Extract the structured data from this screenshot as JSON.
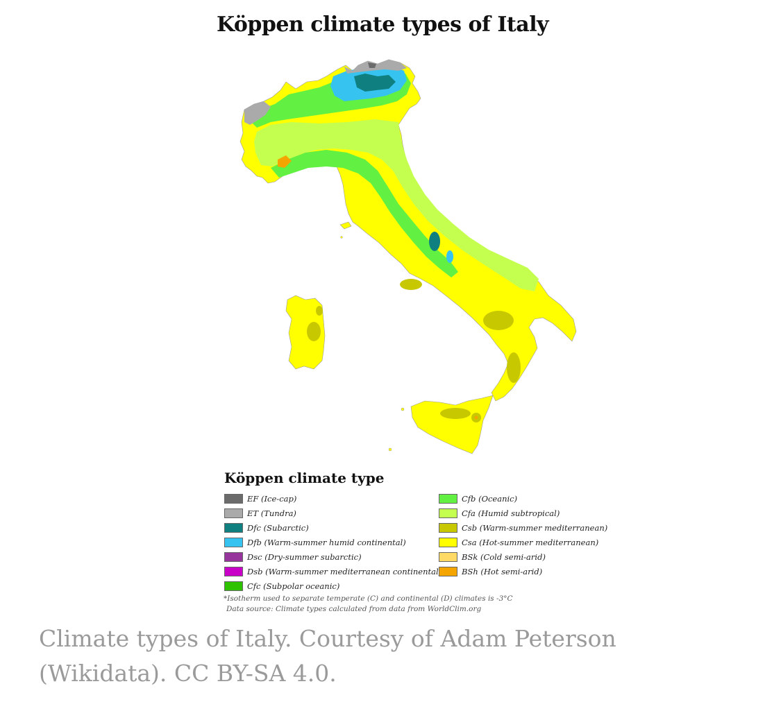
{
  "title": "Köppen climate types of Italy",
  "legend": {
    "title": "Köppen climate type",
    "items": [
      {
        "code": "EF",
        "desc": "(Ice-cap)",
        "color": "#6b6b6b"
      },
      {
        "code": "ET",
        "desc": "(Tundra)",
        "color": "#aaaaaa"
      },
      {
        "code": "Dfc",
        "desc": "(Subarctic)",
        "color": "#0f7f7f"
      },
      {
        "code": "Dfb",
        "desc": "(Warm-summer humid continental)",
        "color": "#36c3f0"
      },
      {
        "code": "Dsc",
        "desc": "(Dry-summer subarctic)",
        "color": "#96359b"
      },
      {
        "code": "Dsb",
        "desc": "(Warm-summer mediterranean continental)",
        "color": "#c800c8"
      },
      {
        "code": "Cfc",
        "desc": "(Subpolar oceanic)",
        "color": "#2fc200"
      },
      {
        "code": "Cfb",
        "desc": "(Oceanic)",
        "color": "#62f042"
      },
      {
        "code": "Cfa",
        "desc": "(Humid subtropical)",
        "color": "#c4ff50"
      },
      {
        "code": "Csb",
        "desc": "(Warm-summer mediterranean)",
        "color": "#c8c800"
      },
      {
        "code": "Csa",
        "desc": "(Hot-summer mediterranean)",
        "color": "#ffff00"
      },
      {
        "code": "BSk",
        "desc": "(Cold semi-arid)",
        "color": "#ffdb66"
      },
      {
        "code": "BSh",
        "desc": "(Hot semi-arid)",
        "color": "#f5a500"
      }
    ]
  },
  "footnote": "*Isotherm used to separate temperate (C) and continental (D) climates is -3°C",
  "data_source": "Data source: Climate types calculated from data from WorldClim.org",
  "caption": "Climate types of Italy. Courtesy of Adam Peterson (Wikidata). CC BY-SA 4.0."
}
